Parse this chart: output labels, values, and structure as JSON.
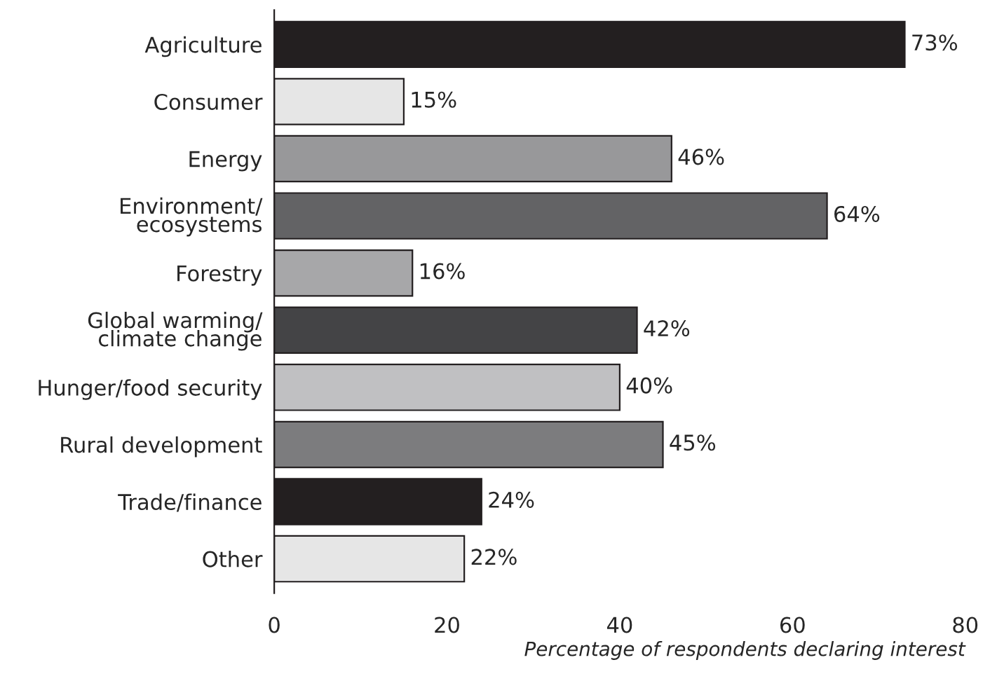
{
  "chart_data": {
    "type": "bar",
    "orientation": "horizontal",
    "xlabel": "Percentage of respondents declaring interest",
    "categories": [
      "Agriculture",
      "Consumer",
      "Energy",
      "Environment/\necosystems",
      "Forestry",
      "Global warming/\nclimate change",
      "Hunger/food security",
      "Rural development",
      "Trade/finance",
      "Other"
    ],
    "values": [
      73,
      15,
      46,
      64,
      16,
      42,
      40,
      45,
      24,
      22
    ],
    "colors": [
      "#231f20",
      "#e6e6e6",
      "#98989a",
      "#636365",
      "#a7a7a9",
      "#444446",
      "#c0c0c2",
      "#7c7c7e",
      "#231f20",
      "#e6e6e6"
    ],
    "value_labels": [
      "73%",
      "15%",
      "46%",
      "64%",
      "16%",
      "42%",
      "40%",
      "45%",
      "24%",
      "22%"
    ],
    "xlim": [
      0,
      80
    ],
    "xticks": [
      0,
      20,
      40,
      60,
      80
    ],
    "grid": false,
    "legend": false
  }
}
